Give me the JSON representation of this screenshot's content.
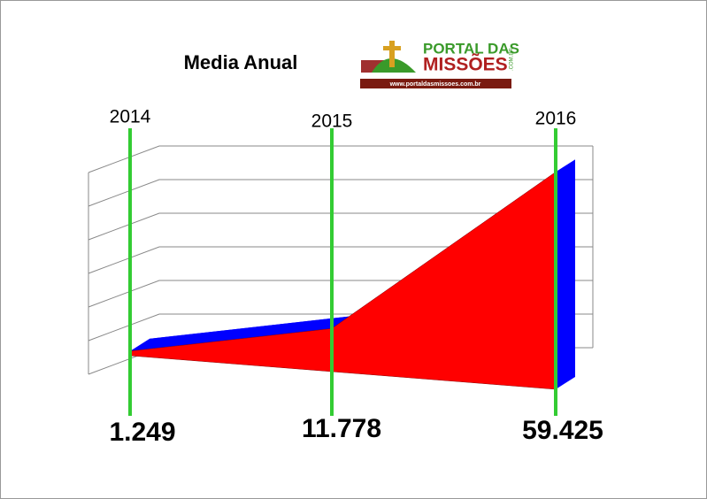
{
  "chart_data": {
    "type": "area3d",
    "title": "Media Anual",
    "categories": [
      "2014",
      "2015",
      "2016"
    ],
    "values": [
      1249,
      11778,
      59425
    ],
    "value_labels": [
      "1.249",
      "11.778",
      "59.425"
    ],
    "color": "#ff0000",
    "side_color": "#0000ff",
    "marker_color": "#33cc33",
    "ylim": [
      0,
      60000
    ],
    "yticks": [
      0,
      10000,
      20000,
      30000,
      40000,
      50000,
      60000
    ],
    "grid": true
  },
  "logo": {
    "line1": "PORTAL DAS",
    "line2": "MISSÕES",
    "suffix": ".COM.BR",
    "url": "www.portaldasmissoes.com.br"
  }
}
